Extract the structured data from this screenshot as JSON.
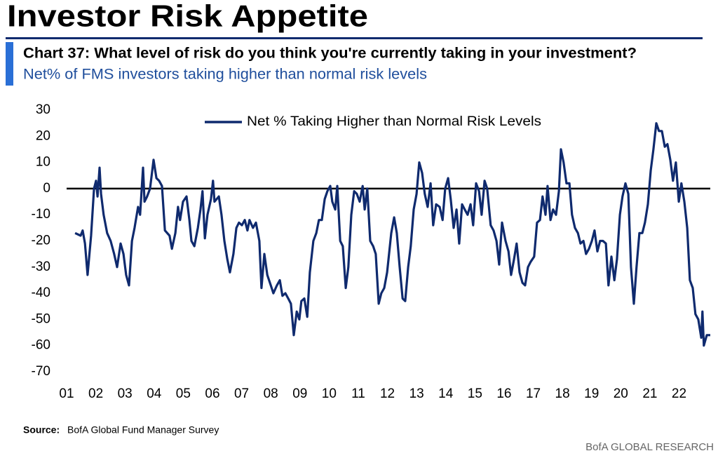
{
  "chart_data": {
    "type": "line",
    "title": "Investor Risk Appetite",
    "subtitle": "Chart 37: What level of risk do you think you're currently taking in your investment?",
    "description": "Net% of FMS investors taking higher than normal risk levels",
    "source_label": "Source:",
    "source": "BofA Global Fund Manager Survey",
    "footer": "BofA GLOBAL RESEARCH",
    "legend": "top",
    "xlim": [
      2001,
      2023.07
    ],
    "ylim": [
      -70,
      30
    ],
    "yticks": [
      30,
      20,
      10,
      0,
      -10,
      -20,
      -30,
      -40,
      -50,
      -60,
      -70
    ],
    "xticks": [
      {
        "value": 2001,
        "label": "01"
      },
      {
        "value": 2002,
        "label": "02"
      },
      {
        "value": 2003,
        "label": "03"
      },
      {
        "value": 2004,
        "label": "04"
      },
      {
        "value": 2005,
        "label": "05"
      },
      {
        "value": 2006,
        "label": "06"
      },
      {
        "value": 2007,
        "label": "07"
      },
      {
        "value": 2008,
        "label": "08"
      },
      {
        "value": 2009,
        "label": "09"
      },
      {
        "value": 2010,
        "label": "10"
      },
      {
        "value": 2011,
        "label": "11"
      },
      {
        "value": 2012,
        "label": "12"
      },
      {
        "value": 2013,
        "label": "13"
      },
      {
        "value": 2014,
        "label": "14"
      },
      {
        "value": 2015,
        "label": "15"
      },
      {
        "value": 2016,
        "label": "16"
      },
      {
        "value": 2017,
        "label": "17"
      },
      {
        "value": 2018,
        "label": "18"
      },
      {
        "value": 2019,
        "label": "19"
      },
      {
        "value": 2020,
        "label": "20"
      },
      {
        "value": 2021,
        "label": "21"
      },
      {
        "value": 2022,
        "label": "22"
      }
    ],
    "x": [
      2001.29,
      2001.48,
      2001.55,
      2001.63,
      2001.72,
      2001.84,
      2001.94,
      2002.01,
      2002.06,
      2002.13,
      2002.18,
      2002.27,
      2002.39,
      2002.51,
      2002.63,
      2002.73,
      2002.85,
      2002.95,
      2003.04,
      2003.14,
      2003.24,
      2003.33,
      2003.45,
      2003.52,
      2003.62,
      2003.67,
      2003.76,
      2003.86,
      2003.98,
      2004.08,
      2004.17,
      2004.27,
      2004.37,
      2004.53,
      2004.61,
      2004.73,
      2004.82,
      2004.89,
      2004.99,
      2005.11,
      2005.21,
      2005.28,
      2005.38,
      2005.5,
      2005.59,
      2005.66,
      2005.74,
      2005.83,
      2005.95,
      2006.02,
      2006.07,
      2006.22,
      2006.31,
      2006.41,
      2006.51,
      2006.6,
      2006.72,
      2006.82,
      2006.91,
      2007.01,
      2007.11,
      2007.2,
      2007.27,
      2007.39,
      2007.49,
      2007.61,
      2007.68,
      2007.78,
      2007.88,
      2008.0,
      2008.09,
      2008.21,
      2008.31,
      2008.4,
      2008.5,
      2008.6,
      2008.69,
      2008.79,
      2008.89,
      2008.98,
      2009.05,
      2009.15,
      2009.25,
      2009.34,
      2009.46,
      2009.56,
      2009.65,
      2009.75,
      2009.85,
      2009.94,
      2010.04,
      2010.11,
      2010.21,
      2010.28,
      2010.38,
      2010.47,
      2010.57,
      2010.66,
      2010.76,
      2010.86,
      2010.95,
      2011.05,
      2011.15,
      2011.22,
      2011.31,
      2011.41,
      2011.51,
      2011.6,
      2011.7,
      2011.79,
      2011.89,
      2011.99,
      2012.13,
      2012.23,
      2012.32,
      2012.42,
      2012.52,
      2012.61,
      2012.71,
      2012.8,
      2012.9,
      2013.0,
      2013.09,
      2013.19,
      2013.28,
      2013.38,
      2013.48,
      2013.57,
      2013.67,
      2013.79,
      2013.89,
      2013.98,
      2014.08,
      2014.17,
      2014.27,
      2014.37,
      2014.46,
      2014.56,
      2014.65,
      2014.75,
      2014.85,
      2014.94,
      2015.04,
      2015.14,
      2015.23,
      2015.33,
      2015.42,
      2015.54,
      2015.64,
      2015.74,
      2015.83,
      2015.93,
      2016.05,
      2016.15,
      2016.24,
      2016.34,
      2016.43,
      2016.53,
      2016.63,
      2016.72,
      2016.82,
      2016.91,
      2017.03,
      2017.13,
      2017.23,
      2017.32,
      2017.42,
      2017.49,
      2017.59,
      2017.68,
      2017.78,
      2017.88,
      2017.95,
      2018.04,
      2018.14,
      2018.24,
      2018.33,
      2018.43,
      2018.53,
      2018.62,
      2018.72,
      2018.81,
      2018.91,
      2019.01,
      2019.1,
      2019.2,
      2019.29,
      2019.39,
      2019.49,
      2019.58,
      2019.68,
      2019.78,
      2019.87,
      2019.97,
      2020.06,
      2020.16,
      2020.26,
      2020.35,
      2020.45,
      2020.54,
      2020.64,
      2020.74,
      2020.83,
      2020.93,
      2021.03,
      2021.12,
      2021.22,
      2021.31,
      2021.41,
      2021.51,
      2021.6,
      2021.7,
      2021.79,
      2021.89,
      2021.99,
      2022.08,
      2022.18,
      2022.28,
      2022.37,
      2022.47,
      2022.56,
      2022.66,
      2022.76,
      2022.8,
      2022.85,
      2022.95,
      2023.07
    ],
    "series": [
      {
        "name": "Net % Taking Higher than Normal Risk Levels",
        "color": "#0f2a6e",
        "values": [
          -17,
          -18,
          -16,
          -21,
          -33,
          -18,
          0,
          3,
          -3,
          8,
          -2,
          -10,
          -17,
          -20,
          -25,
          -30,
          -21,
          -25,
          -33,
          -37,
          -20,
          -15,
          -7,
          -10,
          8,
          -5,
          -3,
          0,
          11,
          4,
          3,
          1,
          -16,
          -18,
          -23,
          -17,
          -7,
          -12,
          -5,
          -3,
          -12,
          -20,
          -22,
          -15,
          -8,
          -1,
          -19,
          -10,
          -4,
          3,
          -5,
          -3,
          -10,
          -20,
          -27,
          -32,
          -25,
          -15,
          -13,
          -14,
          -12,
          -16,
          -12,
          -15,
          -13,
          -20,
          -38,
          -25,
          -33,
          -37,
          -40,
          -37,
          -35,
          -41,
          -40,
          -42,
          -44,
          -56,
          -47,
          -50,
          -43,
          -42,
          -49,
          -32,
          -20,
          -17,
          -12,
          -12,
          -4,
          -1,
          1,
          -5,
          -8,
          1,
          -20,
          -22,
          -38,
          -30,
          -10,
          -1,
          -2,
          -5,
          1,
          -8,
          0,
          -20,
          -22,
          -25,
          -44,
          -40,
          -38,
          -32,
          -17,
          -11,
          -17,
          -30,
          -42,
          -43,
          -30,
          -22,
          -8,
          -2,
          10,
          6,
          -2,
          -7,
          2,
          -14,
          -6,
          -7,
          -12,
          0,
          4,
          -4,
          -15,
          -8,
          -21,
          -6,
          -8,
          -10,
          -6,
          -14,
          2,
          -1,
          -10,
          3,
          0,
          -14,
          -16,
          -20,
          -29,
          -13,
          -20,
          -24,
          -33,
          -27,
          -21,
          -32,
          -36,
          -37,
          -30,
          -28,
          -26,
          -13,
          -12,
          -3,
          -10,
          1,
          -12,
          -8,
          -10,
          -1,
          15,
          10,
          2,
          2,
          -10,
          -15,
          -17,
          -21,
          -20,
          -25,
          -23,
          -20,
          -16,
          -24,
          -20,
          -20,
          -21,
          -37,
          -26,
          -35,
          -27,
          -10,
          -3,
          2,
          -2,
          -30,
          -44,
          -30,
          -17,
          -17,
          -13,
          -6,
          7,
          15,
          25,
          22,
          22,
          16,
          17,
          11,
          3,
          10,
          -5,
          2,
          -5,
          -15,
          -35,
          -38,
          -48,
          -50,
          -57,
          -47,
          -60,
          -56,
          -56
        ]
      }
    ]
  }
}
